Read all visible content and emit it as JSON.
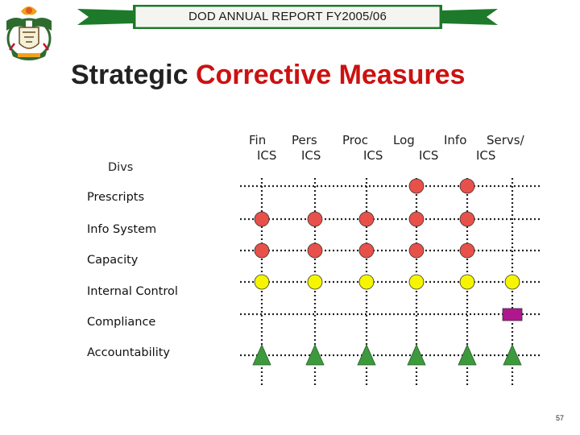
{
  "header": {
    "banner_title": "DOD ANNUAL REPORT FY2005/06",
    "accent_green": "#1d7a2a"
  },
  "logo": {
    "icon": "south-africa-coat-of-arms-icon"
  },
  "title": {
    "part1": "Strategic",
    "part2": "Corrective Measures",
    "part1_color": "#222222",
    "part2_color": "#cc1111"
  },
  "matrix": {
    "corner_label": "Divs",
    "columns": [
      {
        "line1": "Fin",
        "line2": "ICS"
      },
      {
        "line1": "Pers",
        "line2": "ICS"
      },
      {
        "line1": "Proc",
        "line2": "ICS"
      },
      {
        "line1": "Log",
        "line2": "ICS"
      },
      {
        "line1": "Info",
        "line2": "ICS"
      },
      {
        "line1": "Servs/",
        "line2": ""
      }
    ],
    "rows": [
      "Prescripts",
      "Info System",
      "Capacity",
      "Internal Control",
      "Compliance",
      "Accountability"
    ],
    "marker_colors": {
      "red-circle": "#e8504a",
      "yellow-circle": "#f5f500",
      "purple-square": "#b0178f",
      "green-triangle": "#3c9a3c"
    },
    "markers": [
      {
        "row": 0,
        "col": 3,
        "shape": "red-circle"
      },
      {
        "row": 0,
        "col": 4,
        "shape": "red-circle"
      },
      {
        "row": 1,
        "col": 0,
        "shape": "red-circle"
      },
      {
        "row": 1,
        "col": 1,
        "shape": "red-circle"
      },
      {
        "row": 1,
        "col": 2,
        "shape": "red-circle"
      },
      {
        "row": 1,
        "col": 3,
        "shape": "red-circle"
      },
      {
        "row": 1,
        "col": 4,
        "shape": "red-circle"
      },
      {
        "row": 2,
        "col": 0,
        "shape": "red-circle"
      },
      {
        "row": 2,
        "col": 1,
        "shape": "red-circle"
      },
      {
        "row": 2,
        "col": 2,
        "shape": "red-circle"
      },
      {
        "row": 2,
        "col": 3,
        "shape": "red-circle"
      },
      {
        "row": 2,
        "col": 4,
        "shape": "red-circle"
      },
      {
        "row": 3,
        "col": 0,
        "shape": "yellow-circle"
      },
      {
        "row": 3,
        "col": 1,
        "shape": "yellow-circle"
      },
      {
        "row": 3,
        "col": 2,
        "shape": "yellow-circle"
      },
      {
        "row": 3,
        "col": 3,
        "shape": "yellow-circle"
      },
      {
        "row": 3,
        "col": 4,
        "shape": "yellow-circle"
      },
      {
        "row": 3,
        "col": 5,
        "shape": "yellow-circle"
      },
      {
        "row": 4,
        "col": 5,
        "shape": "purple-square"
      },
      {
        "row": 5,
        "col": 0,
        "shape": "green-triangle"
      },
      {
        "row": 5,
        "col": 1,
        "shape": "green-triangle"
      },
      {
        "row": 5,
        "col": 2,
        "shape": "green-triangle"
      },
      {
        "row": 5,
        "col": 3,
        "shape": "green-triangle"
      },
      {
        "row": 5,
        "col": 4,
        "shape": "green-triangle"
      },
      {
        "row": 5,
        "col": 5,
        "shape": "green-triangle"
      }
    ]
  },
  "footer": {
    "page_number": "57"
  }
}
